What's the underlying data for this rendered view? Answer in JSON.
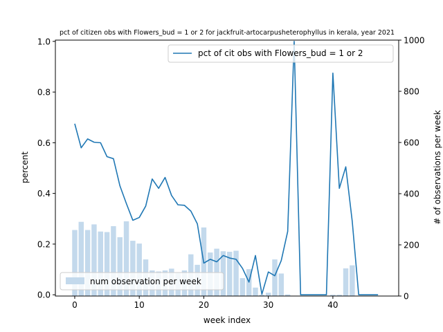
{
  "chart_data": {
    "type": "bar+line",
    "title": "pct of citizen obs with Flowers_bud = 1 or 2 for jackfruit-artocarpusheterophyllus in kerala, year 2021",
    "xlabel": "week index",
    "ylabel_left": "percent",
    "ylabel_right": "# of observations per week",
    "xlim": [
      -3.0,
      50.2
    ],
    "ylim_left": [
      -0.005,
      1.005
    ],
    "ylim_right": [
      0,
      1000
    ],
    "x_ticks": [
      0,
      10,
      20,
      30,
      40
    ],
    "y_left_ticks": [
      0.0,
      0.2,
      0.4,
      0.6,
      0.8,
      1.0
    ],
    "y_left_tick_labels": [
      "0.0",
      "0.2",
      "0.4",
      "0.6",
      "0.8",
      "1.0"
    ],
    "y_right_ticks": [
      0,
      200,
      400,
      600,
      800,
      1000
    ],
    "y_right_tick_labels": [
      "0",
      "200",
      "400",
      "600",
      "800",
      "1000"
    ],
    "bar_series": {
      "name": "num observation per week",
      "color": "#c3d9ec",
      "x": [
        0,
        1,
        2,
        3,
        4,
        5,
        6,
        7,
        8,
        9,
        10,
        11,
        12,
        13,
        14,
        15,
        16,
        17,
        18,
        19,
        20,
        21,
        22,
        23,
        24,
        25,
        26,
        27,
        28,
        29,
        30,
        31,
        32,
        33,
        34,
        35,
        36,
        37,
        38,
        39,
        40,
        41,
        42,
        43,
        44,
        45,
        46,
        47
      ],
      "values": [
        258,
        290,
        258,
        280,
        252,
        250,
        273,
        230,
        292,
        216,
        205,
        143,
        100,
        96,
        100,
        107,
        90,
        100,
        163,
        122,
        268,
        170,
        185,
        175,
        173,
        177,
        70,
        105,
        33,
        5,
        13,
        143,
        88,
        6,
        0,
        0,
        0,
        0,
        0,
        0,
        5,
        5,
        108,
        120,
        0,
        0,
        0,
        0
      ]
    },
    "line_series": {
      "name": "pct of cit obs with Flowers_bud = 1 or 2",
      "color": "#1f77b4",
      "x": [
        0,
        1,
        2,
        3,
        4,
        5,
        6,
        7,
        8,
        9,
        10,
        11,
        12,
        13,
        14,
        15,
        16,
        17,
        18,
        19,
        20,
        21,
        22,
        23,
        24,
        25,
        26,
        27,
        28,
        29,
        30,
        31,
        32,
        33,
        34,
        35,
        36,
        37,
        38,
        39,
        40,
        41,
        42,
        43,
        44,
        45,
        46,
        47
      ],
      "values": [
        0.675,
        0.58,
        0.615,
        0.602,
        0.6,
        0.545,
        0.537,
        0.43,
        0.36,
        0.294,
        0.305,
        0.35,
        0.457,
        0.42,
        0.463,
        0.392,
        0.355,
        0.353,
        0.33,
        0.28,
        0.125,
        0.14,
        0.13,
        0.155,
        0.145,
        0.14,
        0.104,
        0.05,
        0.155,
        0.002,
        0.09,
        0.075,
        0.135,
        0.25,
        1.0,
        0.0,
        0.0,
        0.0,
        0.0,
        0.0,
        0.875,
        0.42,
        0.505,
        0.29,
        0.0,
        0.0,
        0.0,
        0.0
      ]
    },
    "legend_line_placement": "upper right",
    "legend_bar_placement": "lower left",
    "grid": false
  }
}
